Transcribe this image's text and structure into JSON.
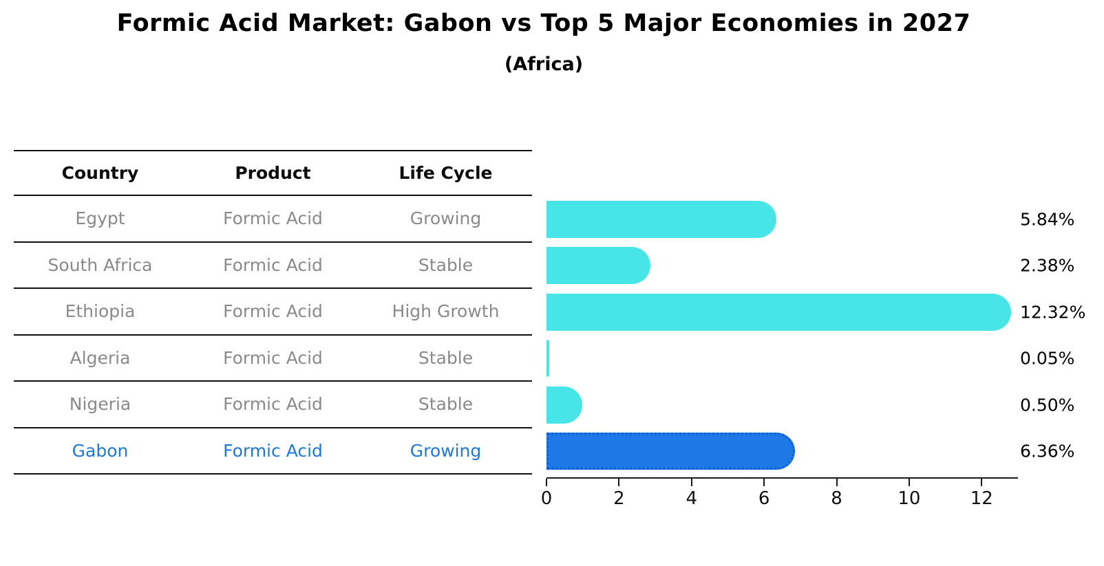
{
  "title": "Formic Acid Market: Gabon vs Top 5 Major Economies in 2027",
  "subtitle": "(Africa)",
  "table": {
    "headers": [
      "Country",
      "Product",
      "Life Cycle"
    ],
    "rows": [
      {
        "country": "Egypt",
        "product": "Formic Acid",
        "life_cycle": "Growing",
        "highlight": false
      },
      {
        "country": "South Africa",
        "product": "Formic Acid",
        "life_cycle": "Stable",
        "highlight": false
      },
      {
        "country": "Ethiopia",
        "product": "Formic Acid",
        "life_cycle": "High Growth",
        "highlight": false
      },
      {
        "country": "Algeria",
        "product": "Formic Acid",
        "life_cycle": "Stable",
        "highlight": false
      },
      {
        "country": "Nigeria",
        "product": "Formic Acid",
        "life_cycle": "Stable",
        "highlight": false
      },
      {
        "country": "Gabon",
        "product": "Formic Acid",
        "life_cycle": "Growing",
        "highlight": true
      }
    ]
  },
  "chart_data": {
    "type": "bar",
    "orientation": "horizontal",
    "title": "Formic Acid Market: Gabon vs Top 5 Major Economies in 2027",
    "subtitle": "(Africa)",
    "categories": [
      "Egypt",
      "South Africa",
      "Ethiopia",
      "Algeria",
      "Nigeria",
      "Gabon"
    ],
    "values": [
      5.84,
      2.38,
      12.32,
      0.05,
      0.5,
      6.36
    ],
    "value_labels": [
      "5.84%",
      "2.38%",
      "12.32%",
      "0.05%",
      "0.50%",
      "6.36%"
    ],
    "value_suffix": "%",
    "highlight_index": 5,
    "highlight_category": "Gabon",
    "xlim": [
      0,
      13
    ],
    "x_ticks": [
      "0",
      "2",
      "4",
      "6",
      "8",
      "10",
      "12"
    ],
    "x_tick_values": [
      0,
      2,
      4,
      6,
      8,
      10,
      12
    ],
    "grid": false,
    "legend": false,
    "colors": {
      "default_bar": "#48e5e8",
      "highlight_bar": "#1e78e6",
      "highlight_border": "#0d5fd0",
      "highlight_text": "#1e78dc",
      "table_text": "#8a8a8a",
      "header_text": "#0d0d0d",
      "axis": "#1a1a1a"
    }
  }
}
